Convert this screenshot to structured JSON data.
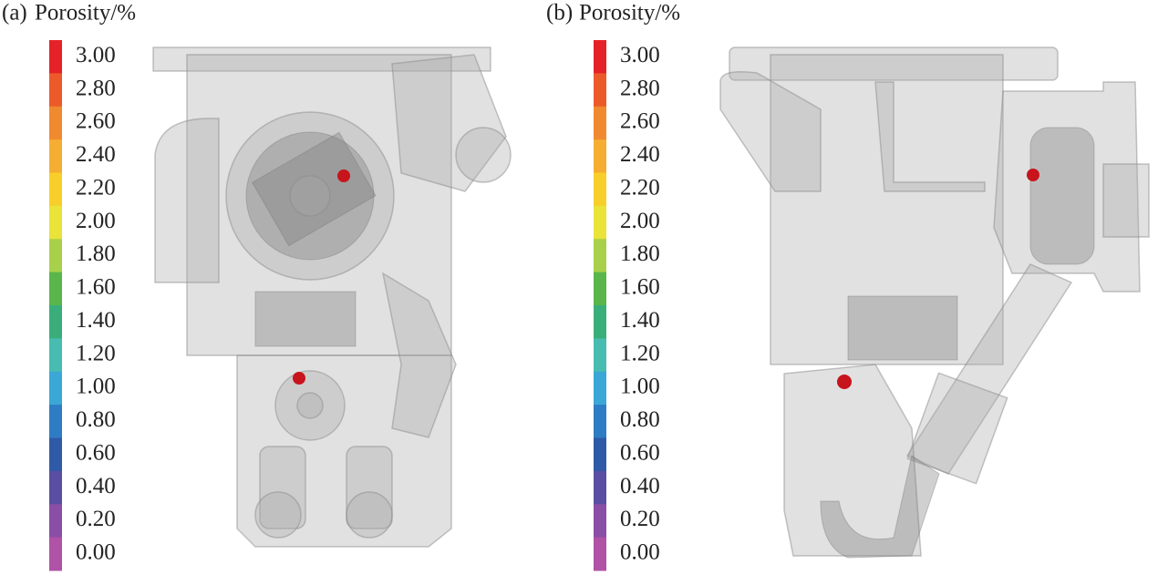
{
  "panels": [
    {
      "label": "(a)",
      "title": "Porosity/%",
      "ticks": [
        "3.00",
        "2.80",
        "2.60",
        "2.40",
        "2.20",
        "2.00",
        "1.80",
        "1.60",
        "1.40",
        "1.20",
        "1.00",
        "0.80",
        "0.60",
        "0.40",
        "0.20",
        "0.00"
      ]
    },
    {
      "label": "(b)",
      "title": "Porosity/%",
      "ticks": [
        "3.00",
        "2.80",
        "2.60",
        "2.40",
        "2.20",
        "2.00",
        "1.80",
        "1.60",
        "1.40",
        "1.20",
        "1.00",
        "0.80",
        "0.60",
        "0.40",
        "0.20",
        "0.00"
      ]
    }
  ],
  "colorbar_colors": [
    "#e52228",
    "#ec5a2a",
    "#f08a30",
    "#f5ad32",
    "#f8cf2a",
    "#e9e33a",
    "#a8d04a",
    "#5ab54a",
    "#3aae7a",
    "#48bcb0",
    "#3aa7d6",
    "#2e7cc4",
    "#2f5aa8",
    "#5a4ea2",
    "#8a4ea6",
    "#b052a6"
  ]
}
